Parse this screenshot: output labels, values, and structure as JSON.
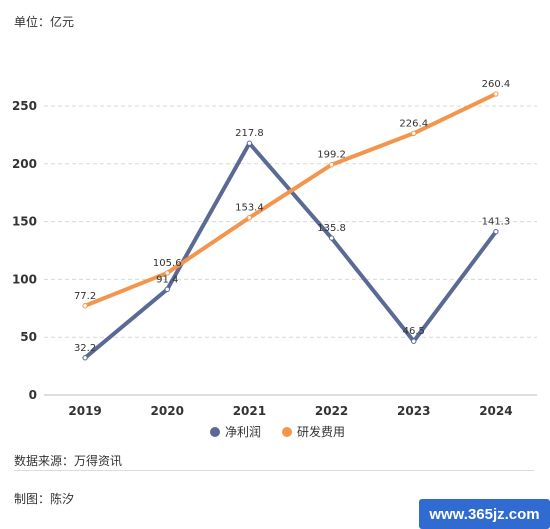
{
  "header": {
    "unit": "单位：亿元"
  },
  "footer": {
    "source": "数据来源：万得资讯",
    "author": "制图：陈汐",
    "watermark": "www.365jz.com"
  },
  "colors": {
    "series1": "#5b6a94",
    "series2": "#f4954d",
    "grid": "#d8d8d8",
    "axis": "#bbbbbb",
    "watermark_bg": "#2f6bd0"
  },
  "chart_data": {
    "type": "line",
    "x": [
      "2019",
      "2020",
      "2021",
      "2022",
      "2023",
      "2024"
    ],
    "ylim": [
      0,
      250
    ],
    "yticks": [
      0,
      50,
      100,
      150,
      200,
      250
    ],
    "grid": true,
    "legend_position": "bottom-center",
    "series": [
      {
        "name": "净利润",
        "values": [
          32.2,
          91.4,
          217.8,
          135.8,
          46.5,
          141.3
        ],
        "labels": [
          "32.2",
          "91.4",
          "217.8",
          "135.8",
          "46.5",
          "141.3"
        ],
        "color": "#5b6a94"
      },
      {
        "name": "研发费用",
        "values": [
          77.2,
          105.6,
          153.4,
          199.2,
          226.4,
          260.4
        ],
        "labels": [
          "77.2",
          "105.6",
          "153.4",
          "199.2",
          "226.4",
          "260.4"
        ],
        "color": "#f4954d"
      }
    ]
  }
}
